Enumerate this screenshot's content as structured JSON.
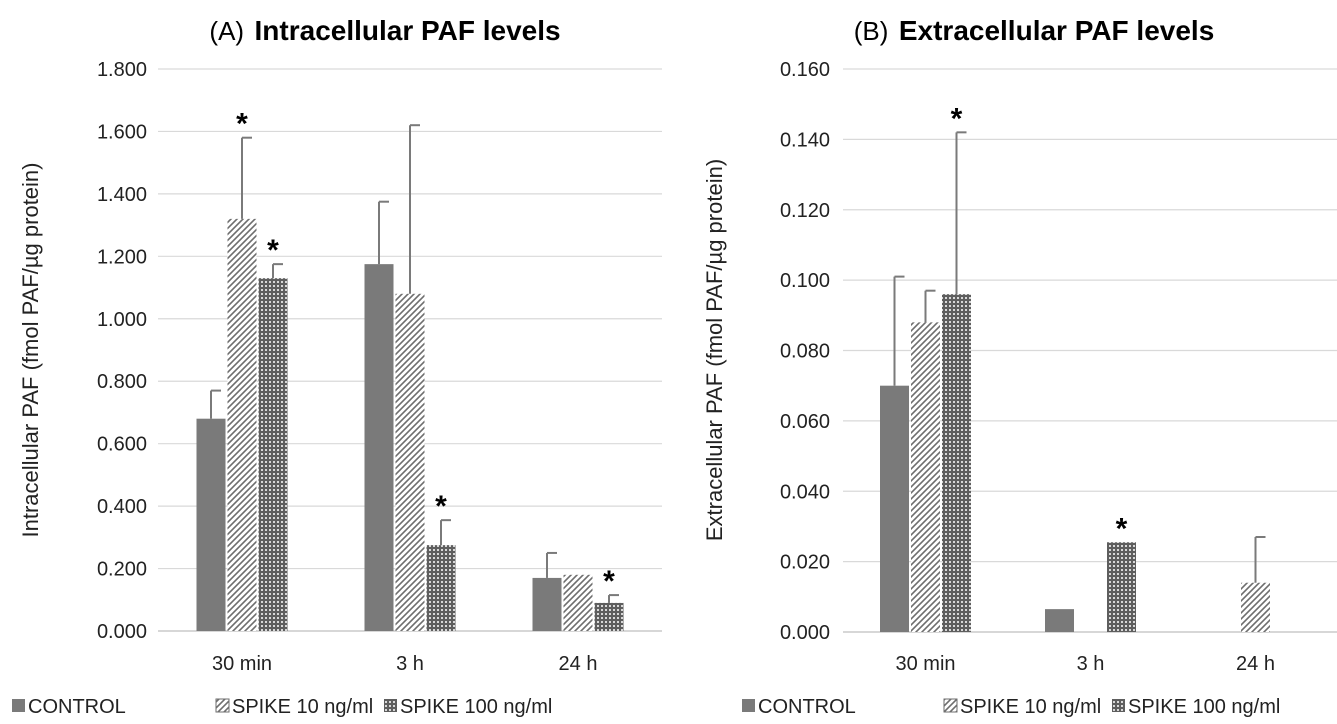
{
  "colors": {
    "control": "#7a7a7a",
    "spike10_stroke": "#6e6e6e",
    "spike100": "#5e5e5e",
    "grid": "#d9d9d9",
    "axis": "#bfbfbf",
    "error_bar": "#7a7a7a"
  },
  "chart_data": [
    {
      "type": "bar",
      "title_prefix": "(A)",
      "title": "Intracellular PAF levels",
      "ylabel": "Intracellular PAF (fmol PAF/µg protein)",
      "xlabel": "",
      "ylim": [
        0,
        1.8
      ],
      "yticks": [
        "0.000",
        "0.200",
        "0.400",
        "0.600",
        "0.800",
        "1.000",
        "1.200",
        "1.400",
        "1.600",
        "1.800"
      ],
      "grid": true,
      "legend_position": "bottom",
      "categories": [
        "30 min",
        "3 h",
        "24 h"
      ],
      "series": [
        {
          "name": "CONTROL",
          "pattern": "solid",
          "values": [
            0.68,
            1.175,
            0.17
          ],
          "errors": [
            0.09,
            0.2,
            0.08
          ],
          "significant": [
            false,
            false,
            false
          ]
        },
        {
          "name": "SPIKE 10 ng/ml",
          "pattern": "diagonal",
          "values": [
            1.32,
            1.08,
            0.18
          ],
          "errors": [
            0.26,
            0.54,
            0
          ],
          "significant": [
            true,
            false,
            false
          ]
        },
        {
          "name": "SPIKE 100 ng/ml",
          "pattern": "grid",
          "values": [
            1.13,
            0.275,
            0.09
          ],
          "errors": [
            0.045,
            0.08,
            0.025
          ],
          "significant": [
            true,
            true,
            true
          ]
        }
      ],
      "significance_marker": "*"
    },
    {
      "type": "bar",
      "title_prefix": "(B)",
      "title": "Extracellular PAF levels",
      "ylabel": "Extracellular PAF (fmol PAF/µg protein)",
      "xlabel": "",
      "ylim": [
        0,
        0.16
      ],
      "yticks": [
        "0.000",
        "0.020",
        "0.040",
        "0.060",
        "0.080",
        "0.100",
        "0.120",
        "0.140",
        "0.160"
      ],
      "grid": true,
      "legend_position": "bottom",
      "categories": [
        "30 min",
        "3 h",
        "24 h"
      ],
      "series": [
        {
          "name": "CONTROL",
          "pattern": "solid",
          "values": [
            0.07,
            0.0065,
            0
          ],
          "errors": [
            0.031,
            0,
            0
          ],
          "significant": [
            false,
            false,
            false
          ]
        },
        {
          "name": "SPIKE 10 ng/ml",
          "pattern": "diagonal",
          "values": [
            0.088,
            0,
            0.014
          ],
          "errors": [
            0.009,
            0,
            0.013
          ],
          "significant": [
            false,
            false,
            false
          ]
        },
        {
          "name": "SPIKE 100 ng/ml",
          "pattern": "grid",
          "values": [
            0.096,
            0.0255,
            0
          ],
          "errors": [
            0.046,
            0,
            0
          ],
          "significant": [
            true,
            true,
            false
          ]
        }
      ],
      "significance_marker": "*"
    }
  ]
}
